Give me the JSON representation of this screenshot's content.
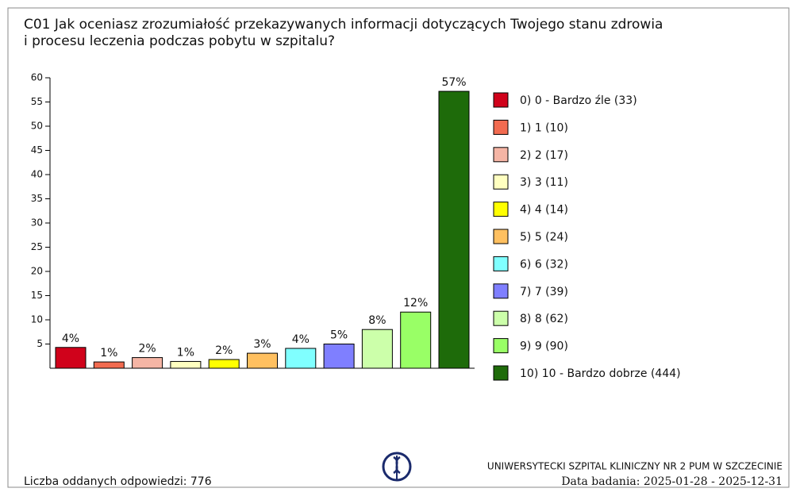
{
  "chart_data": {
    "type": "bar",
    "title": [
      "C01 Jak oceniasz zrozumiałość przekazywanych informacji dotyczących Twojego stanu zdrowia",
      "i procesu leczenia podczas pobytu w szpitalu?"
    ],
    "categories": [
      "0) 0 - Bardzo źle (33)",
      "1) 1 (10)",
      "2) 2 (17)",
      "3) 3 (11)",
      "4) 4 (14)",
      "5) 5 (24)",
      "6) 6 (32)",
      "7) 7 (39)",
      "8) 8 (62)",
      "9) 9 (90)",
      "10) 10 - Bardzo dobrze (444)"
    ],
    "values": [
      4.3,
      1.3,
      2.2,
      1.4,
      1.8,
      3.1,
      4.1,
      5.0,
      8.0,
      11.6,
      57.2
    ],
    "value_labels": [
      "4%",
      "1%",
      "2%",
      "1%",
      "2%",
      "3%",
      "4%",
      "5%",
      "8%",
      "12%",
      "57%"
    ],
    "colors": [
      "#d0021b",
      "#f26b50",
      "#f5b5a5",
      "#ffffc0",
      "#ffff00",
      "#ffc060",
      "#80ffff",
      "#7f7fff",
      "#ccffaa",
      "#99ff66",
      "#1e6b0a"
    ],
    "ylim": [
      0,
      60
    ],
    "yticks": [
      5,
      10,
      15,
      20,
      25,
      30,
      35,
      40,
      45,
      50,
      55,
      60
    ]
  },
  "footer": {
    "count": "Liczba oddanych odpowiedzi: 776",
    "org": "UNIWERSYTECKI SZPITAL KLINICZNY NR 2 PUM W SZCZECINIE",
    "date": "Data badania: 2025-01-28 - 2025-12-31"
  }
}
